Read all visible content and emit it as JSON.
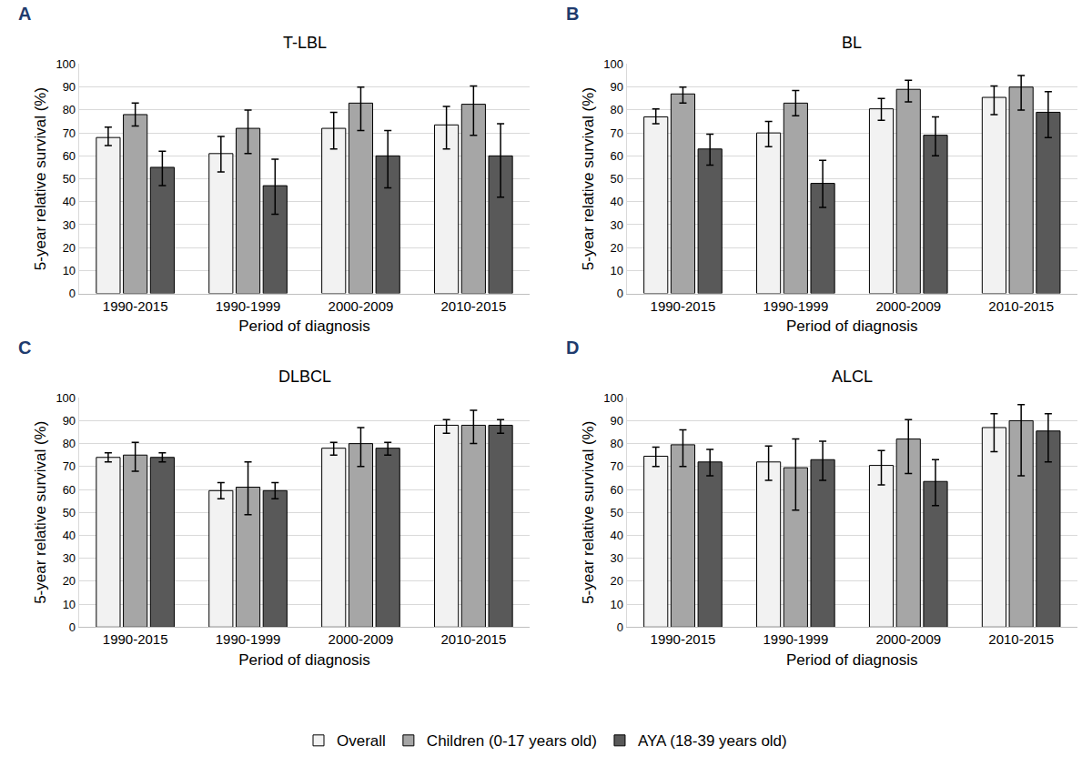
{
  "chart_data": [
    {
      "type": "bar",
      "panel_label": "A",
      "title": "T-LBL",
      "x_label": "Period of diagnosis",
      "y_label": "5-year relative survival (%)",
      "categories": [
        "1990-2015",
        "1990-1999",
        "2000-2009",
        "2010-2015"
      ],
      "series": [
        {
          "name": "Overall",
          "color": "#f2f2f2",
          "values": [
            68,
            61,
            72,
            73.5
          ],
          "lower": [
            64.5,
            53,
            63,
            63
          ],
          "upper": [
            72.5,
            68.5,
            79,
            81.5
          ]
        },
        {
          "name": "Children (0-17 years old)",
          "color": "#a6a6a6",
          "values": [
            78,
            72,
            83,
            82.5
          ],
          "lower": [
            73,
            61,
            71,
            69
          ],
          "upper": [
            83,
            80,
            90,
            90.5
          ]
        },
        {
          "name": "AYA (18-39 years old)",
          "color": "#595959",
          "values": [
            55,
            47,
            60,
            60
          ],
          "lower": [
            47,
            34.5,
            46,
            42
          ],
          "upper": [
            62,
            58.5,
            71,
            74
          ]
        }
      ],
      "ylim": [
        0,
        100
      ],
      "yticks": [
        0,
        10,
        20,
        30,
        40,
        50,
        60,
        70,
        80,
        90,
        100
      ],
      "grid": true,
      "legend": "bottom"
    },
    {
      "type": "bar",
      "panel_label": "B",
      "title": "BL",
      "x_label": "Period of diagnosis",
      "y_label": "5-year relative survival (%)",
      "categories": [
        "1990-2015",
        "1990-1999",
        "2000-2009",
        "2010-2015"
      ],
      "series": [
        {
          "name": "Overall",
          "color": "#f2f2f2",
          "values": [
            77,
            70,
            80.5,
            85.5
          ],
          "lower": [
            74,
            64,
            75.5,
            78
          ],
          "upper": [
            80.5,
            75,
            85,
            90.5
          ]
        },
        {
          "name": "Children (0-17 years old)",
          "color": "#a6a6a6",
          "values": [
            87,
            83,
            89,
            90
          ],
          "lower": [
            83,
            77.5,
            83.5,
            80
          ],
          "upper": [
            90,
            88.5,
            93,
            95
          ]
        },
        {
          "name": "AYA (18-39 years old)",
          "color": "#595959",
          "values": [
            63,
            48,
            69,
            79
          ],
          "lower": [
            56,
            37.5,
            60,
            68
          ],
          "upper": [
            69.5,
            58,
            77,
            88
          ]
        }
      ],
      "ylim": [
        0,
        100
      ],
      "yticks": [
        0,
        10,
        20,
        30,
        40,
        50,
        60,
        70,
        80,
        90,
        100
      ],
      "grid": true,
      "legend": "bottom"
    },
    {
      "type": "bar",
      "panel_label": "C",
      "title": "DLBCL",
      "x_label": "Period of diagnosis",
      "y_label": "5-year relative survival (%)",
      "categories": [
        "1990-2015",
        "1990-1999",
        "2000-2009",
        "2010-2015"
      ],
      "series": [
        {
          "name": "Overall",
          "color": "#f2f2f2",
          "values": [
            74,
            59.5,
            78,
            88
          ],
          "lower": [
            72,
            56,
            75,
            84.5
          ],
          "upper": [
            76,
            63,
            80.5,
            90.5
          ]
        },
        {
          "name": "Children (0-17 years old)",
          "color": "#a6a6a6",
          "values": [
            75,
            61,
            80,
            88
          ],
          "lower": [
            68,
            49,
            70,
            80
          ],
          "upper": [
            80.5,
            72,
            87,
            94.5
          ]
        },
        {
          "name": "AYA (18-39 years old)",
          "color": "#595959",
          "values": [
            74,
            59.5,
            78,
            88
          ],
          "lower": [
            72,
            56,
            75,
            84.5
          ],
          "upper": [
            76,
            63,
            80.5,
            90.5
          ]
        }
      ],
      "ylim": [
        0,
        100
      ],
      "yticks": [
        0,
        10,
        20,
        30,
        40,
        50,
        60,
        70,
        80,
        90,
        100
      ],
      "grid": true,
      "legend": "bottom"
    },
    {
      "type": "bar",
      "panel_label": "D",
      "title": "ALCL",
      "x_label": "Period of diagnosis",
      "y_label": "5-year relative survival (%)",
      "categories": [
        "1990-2015",
        "1990-1999",
        "2000-2009",
        "2010-2015"
      ],
      "series": [
        {
          "name": "Overall",
          "color": "#f2f2f2",
          "values": [
            74.5,
            72,
            70.5,
            87
          ],
          "lower": [
            70,
            64,
            62,
            76.5
          ],
          "upper": [
            78.5,
            79,
            77,
            93
          ]
        },
        {
          "name": "Children (0-17 years old)",
          "color": "#a6a6a6",
          "values": [
            79.5,
            69.5,
            82,
            90
          ],
          "lower": [
            70,
            51,
            67,
            66
          ],
          "upper": [
            86,
            82,
            90.5,
            97
          ]
        },
        {
          "name": "AYA (18-39 years old)",
          "color": "#595959",
          "values": [
            72,
            73,
            63.5,
            85.5
          ],
          "lower": [
            66,
            64,
            53,
            72
          ],
          "upper": [
            77.5,
            81,
            73,
            93
          ]
        }
      ],
      "ylim": [
        0,
        100
      ],
      "yticks": [
        0,
        10,
        20,
        30,
        40,
        50,
        60,
        70,
        80,
        90,
        100
      ],
      "grid": true,
      "legend": "bottom"
    }
  ]
}
